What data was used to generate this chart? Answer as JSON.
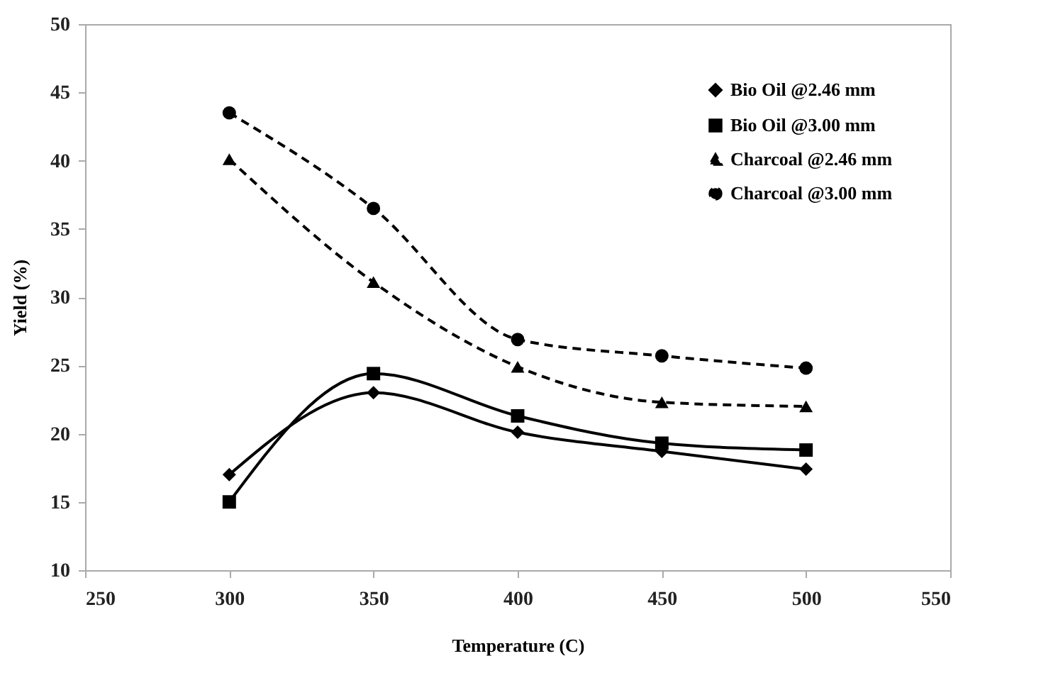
{
  "chart_data": {
    "type": "line",
    "xlabel": "Temperature (C)",
    "ylabel": "Yield (%)",
    "x": [
      300,
      350,
      400,
      450,
      500
    ],
    "xlim": [
      250,
      550
    ],
    "xticks": [
      250,
      300,
      350,
      400,
      450,
      500,
      550
    ],
    "ylim": [
      10,
      50
    ],
    "yticks": [
      10,
      15,
      20,
      25,
      30,
      35,
      40,
      45,
      50
    ],
    "grid": false,
    "legend": "top right",
    "series": [
      {
        "name": "Bio Oil @2.46 mm",
        "color": "#000000",
        "marker": "diamond",
        "line_style": "solid",
        "values": [
          17,
          23,
          20.1,
          18.7,
          17.4
        ]
      },
      {
        "name": "Bio Oil @3.00 mm",
        "color": "#000000",
        "marker": "square",
        "line_style": "solid",
        "values": [
          15,
          24.4,
          21.3,
          19.3,
          18.8
        ]
      },
      {
        "name": "Charcoal @2.46 mm",
        "color": "#000000",
        "marker": "triangle",
        "line_style": "dashed",
        "values": [
          40.1,
          31.1,
          24.9,
          22.3,
          22
        ]
      },
      {
        "name": "Charcoal @3.00 mm",
        "color": "#000000",
        "marker": "circle",
        "line_style": "dashed",
        "values": [
          43.5,
          36.5,
          26.9,
          25.7,
          24.8
        ]
      }
    ]
  }
}
